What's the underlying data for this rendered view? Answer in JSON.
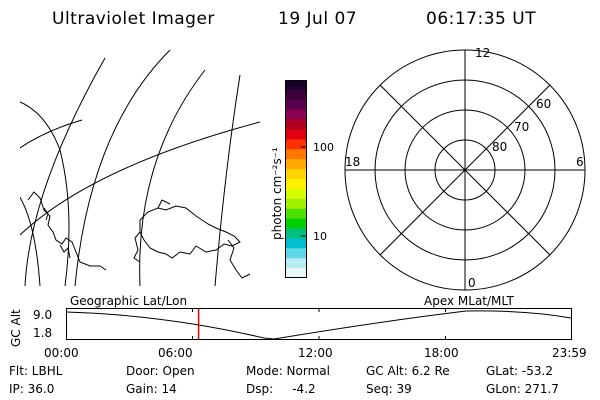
{
  "header": {
    "title": "Ultraviolet Imager",
    "date": "19 Jul 07",
    "time": "06:17:35 UT"
  },
  "colorbar": {
    "unit_label": "photon cm⁻²s⁻¹",
    "ticks": [
      "100",
      "10"
    ],
    "colors": [
      "#1a0028",
      "#3a003a",
      "#5a0050",
      "#8a0050",
      "#b00020",
      "#e00010",
      "#ff3000",
      "#ff7800",
      "#ffaa00",
      "#ffd400",
      "#fff000",
      "#d8ff00",
      "#a0f000",
      "#50e000",
      "#00d000",
      "#00c080",
      "#00c0d0",
      "#60d8e8",
      "#b8ecf0",
      "#e8f8f8"
    ]
  },
  "polar_plot": {
    "mlt_labels": {
      "top": "12",
      "left": "18",
      "right": "6",
      "bottom": "0"
    },
    "lat_labels": [
      "60",
      "70",
      "80"
    ]
  },
  "timeline": {
    "y_axis_label": "GC Alt",
    "y_ticks": [
      "9.0",
      "1.8"
    ],
    "left_caption": "Geographic Lat/Lon",
    "right_caption": "Apex  MLat/MLT",
    "x_ticks": [
      "00:00",
      "06:00",
      "12:00",
      "18:00",
      "23:59"
    ],
    "current_time_hours": 6.29,
    "current_marker_color": "#dd0000"
  },
  "status": {
    "row1": [
      "Flt: LBHL",
      "Door: Open",
      "Mode: Normal",
      "GC Alt: 6.2 Re",
      "GLat: -53.2"
    ],
    "row2": [
      "IP: 36.0",
      "Gain: 14",
      "Dsp:     -4.2",
      "Seq: 39",
      "GLon: 271.7"
    ]
  }
}
